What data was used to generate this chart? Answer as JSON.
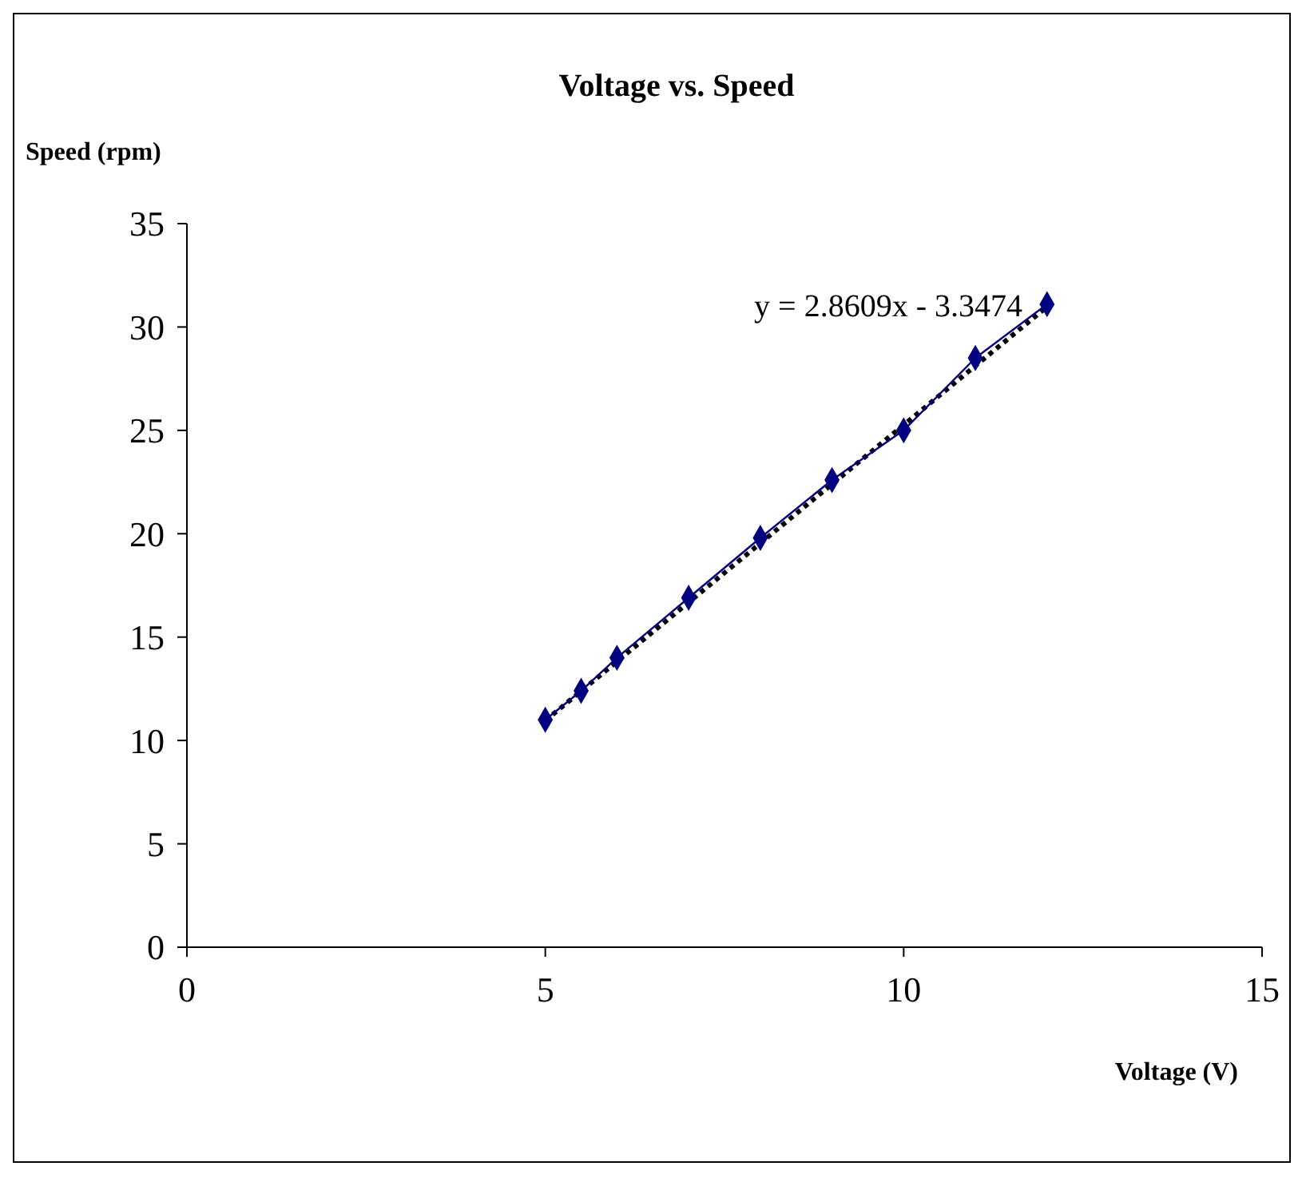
{
  "chart_data": {
    "type": "line",
    "title": "Voltage vs. Speed",
    "xlabel": "Voltage (V)",
    "ylabel": "Speed (rpm)",
    "xlim": [
      0,
      15
    ],
    "xticks": [
      0,
      5,
      10,
      15
    ],
    "ylim": [
      0,
      35
    ],
    "yticks": [
      0,
      5,
      10,
      15,
      20,
      25,
      30,
      35
    ],
    "grid": false,
    "annotations": [
      "y = 2.8609x - 3.3474"
    ],
    "series": [
      {
        "color": "#000080",
        "marker": "diamond",
        "line_style": "solid",
        "x": [
          5,
          5.5,
          6,
          7,
          8,
          9,
          10,
          11,
          12
        ],
        "values": [
          11.0,
          12.4,
          14.0,
          16.9,
          19.8,
          22.6,
          25.0,
          28.5,
          31.1
        ]
      },
      {
        "color": "#000000",
        "marker": "none",
        "line_style": "dotted",
        "x": [
          5,
          12
        ],
        "values": [
          10.96,
          30.98
        ]
      }
    ]
  }
}
